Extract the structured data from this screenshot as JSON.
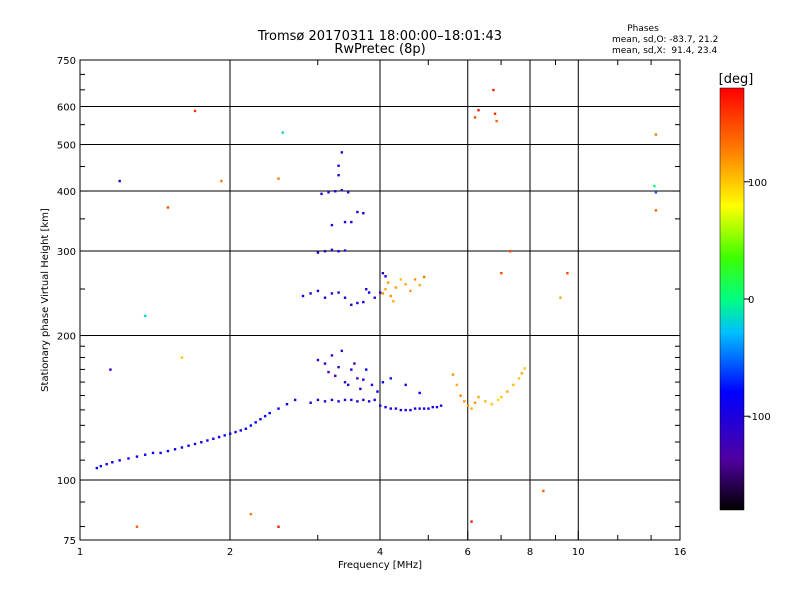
{
  "chart_data": {
    "type": "scatter",
    "title": "Tromsø 20170311 18:00:00–18:01:43",
    "subtitle": "RwPretec (8p)",
    "xlabel": "Frequency [MHz]",
    "ylabel": "Stationary phase Virtual Height [km]",
    "x_scale": "log",
    "y_scale": "log",
    "xlim": [
      1,
      16
    ],
    "ylim": [
      75,
      750
    ],
    "x_ticks": [
      1,
      2,
      4,
      6,
      8,
      10,
      16
    ],
    "x_tick_labels": [
      "1",
      "2",
      "4",
      "6",
      "8",
      "10",
      "16"
    ],
    "y_ticks": [
      75,
      100,
      200,
      300,
      400,
      500,
      600,
      750
    ],
    "y_tick_labels": [
      "75",
      "100",
      "200",
      "300",
      "400",
      "500",
      "600",
      "750"
    ],
    "x_gridlines": [
      2,
      4,
      6,
      8,
      10
    ],
    "y_gridlines": [
      100,
      200,
      300,
      400,
      500,
      600
    ],
    "grid": true,
    "phase_stats": {
      "heading": "Phases",
      "line_o": "mean, sd,O: -83.7, 21.2",
      "line_x": "mean, sd,X:  91.4, 23.4"
    },
    "colorbar": {
      "label": "[deg]",
      "range": [
        -180,
        180
      ],
      "ticks": [
        100,
        0,
        -100
      ],
      "tick_labels": [
        "100",
        "0",
        "-100"
      ]
    },
    "series": [
      {
        "values": [
          [
            1.08,
            106,
            -90
          ],
          [
            1.1,
            107,
            -88
          ],
          [
            1.13,
            108,
            -100
          ],
          [
            1.16,
            109,
            -85
          ],
          [
            1.2,
            110,
            -90
          ],
          [
            1.25,
            111,
            -95
          ],
          [
            1.3,
            112,
            -88
          ],
          [
            1.35,
            113,
            -92
          ],
          [
            1.4,
            114,
            -85
          ],
          [
            1.45,
            114,
            -90
          ],
          [
            1.5,
            115,
            -95
          ],
          [
            1.55,
            116,
            -88
          ],
          [
            1.6,
            117,
            -90
          ],
          [
            1.65,
            118,
            -85
          ],
          [
            1.7,
            119,
            -92
          ],
          [
            1.75,
            120,
            -90
          ],
          [
            1.8,
            121,
            -88
          ],
          [
            1.85,
            122,
            -95
          ],
          [
            1.9,
            123,
            -85
          ],
          [
            1.95,
            124,
            -90
          ],
          [
            2.0,
            125,
            -88
          ],
          [
            2.05,
            126,
            -100
          ],
          [
            2.1,
            127,
            -90
          ],
          [
            2.15,
            128,
            -85
          ],
          [
            2.2,
            130,
            -78
          ],
          [
            2.25,
            132,
            -80
          ],
          [
            2.3,
            134,
            -85
          ],
          [
            2.35,
            136,
            -78
          ],
          [
            2.4,
            138,
            -82
          ],
          [
            2.5,
            141,
            -80
          ],
          [
            2.6,
            144,
            -85
          ],
          [
            2.7,
            147,
            -88
          ]
        ]
      },
      {
        "values": [
          [
            2.9,
            145,
            -100
          ],
          [
            3.0,
            147,
            -105
          ],
          [
            3.1,
            146,
            -110
          ],
          [
            3.2,
            147,
            -100
          ],
          [
            3.3,
            146,
            -108
          ],
          [
            3.4,
            147,
            -112
          ],
          [
            3.5,
            147,
            -100
          ],
          [
            3.6,
            146,
            -105
          ],
          [
            3.7,
            147,
            -110
          ],
          [
            3.8,
            146,
            -100
          ],
          [
            3.9,
            147,
            -95
          ],
          [
            4.0,
            143,
            -95
          ],
          [
            4.1,
            142,
            -100
          ],
          [
            4.2,
            141,
            -92
          ],
          [
            4.3,
            141,
            -98
          ],
          [
            4.4,
            140,
            -100
          ],
          [
            4.5,
            140,
            -95
          ],
          [
            4.6,
            140,
            -92
          ],
          [
            4.7,
            141,
            -98
          ],
          [
            4.8,
            141,
            -95
          ],
          [
            4.9,
            141,
            -100
          ],
          [
            5.0,
            141,
            -95
          ],
          [
            5.1,
            142,
            -92
          ],
          [
            5.2,
            142,
            -98
          ],
          [
            5.3,
            143,
            -100
          ]
        ]
      },
      {
        "values": [
          [
            3.0,
            178,
            -100
          ],
          [
            3.1,
            175,
            -110
          ],
          [
            3.15,
            168,
            -130
          ],
          [
            3.2,
            182,
            -120
          ],
          [
            3.25,
            165,
            -140
          ],
          [
            3.3,
            172,
            -115
          ],
          [
            3.35,
            186,
            -105
          ],
          [
            3.4,
            160,
            -125
          ],
          [
            3.45,
            158,
            -110
          ],
          [
            3.5,
            170,
            -100
          ],
          [
            3.55,
            175,
            -130
          ],
          [
            3.6,
            163,
            -120
          ],
          [
            3.65,
            155,
            -110
          ],
          [
            3.7,
            162,
            -95
          ],
          [
            3.75,
            170,
            -85
          ],
          [
            3.85,
            158,
            -100
          ],
          [
            3.95,
            153,
            -80
          ],
          [
            4.05,
            160,
            -90
          ],
          [
            4.2,
            163,
            -75
          ],
          [
            4.5,
            158,
            -90
          ],
          [
            4.8,
            152,
            -85
          ]
        ]
      },
      {
        "values": [
          [
            3.0,
            298,
            -100
          ],
          [
            3.1,
            300,
            -110
          ],
          [
            3.2,
            302,
            -105
          ],
          [
            3.3,
            300,
            -100
          ],
          [
            3.4,
            301,
            -108
          ],
          [
            3.05,
            395,
            -105
          ],
          [
            3.15,
            398,
            -110
          ],
          [
            3.25,
            400,
            -100
          ],
          [
            3.35,
            402,
            -108
          ],
          [
            3.45,
            398,
            -104
          ],
          [
            3.3,
            452,
            -100
          ],
          [
            3.35,
            482,
            -110
          ],
          [
            3.3,
            432,
            -105
          ],
          [
            3.2,
            340,
            -110
          ],
          [
            3.4,
            345,
            -100
          ],
          [
            3.5,
            345,
            -105
          ],
          [
            3.6,
            362,
            -100
          ],
          [
            3.7,
            360,
            -95
          ]
        ]
      },
      {
        "values": [
          [
            2.8,
            242,
            -90
          ],
          [
            2.9,
            245,
            -100
          ],
          [
            3.0,
            248,
            -105
          ],
          [
            3.1,
            240,
            -110
          ],
          [
            3.2,
            245,
            -100
          ],
          [
            3.3,
            246,
            -105
          ],
          [
            3.4,
            240,
            -100
          ],
          [
            3.5,
            232,
            -105
          ],
          [
            3.6,
            234,
            -100
          ],
          [
            3.7,
            235,
            -95
          ],
          [
            3.75,
            250,
            -100
          ],
          [
            3.8,
            246,
            -90
          ],
          [
            3.9,
            240,
            -100
          ],
          [
            4.0,
            246,
            -105
          ],
          [
            4.05,
            270,
            -110
          ],
          [
            4.1,
            266,
            -100
          ]
        ]
      },
      {
        "values": [
          [
            4.05,
            245,
            120
          ],
          [
            4.1,
            250,
            110
          ],
          [
            4.15,
            258,
            115
          ],
          [
            4.2,
            242,
            120
          ],
          [
            4.25,
            236,
            110
          ],
          [
            4.3,
            252,
            115
          ],
          [
            4.4,
            262,
            105
          ],
          [
            4.5,
            256,
            110
          ],
          [
            4.6,
            248,
            115
          ],
          [
            4.7,
            262,
            120
          ],
          [
            4.8,
            255,
            110
          ],
          [
            4.9,
            265,
            130
          ]
        ]
      },
      {
        "values": [
          [
            5.6,
            166,
            120
          ],
          [
            5.7,
            158,
            110
          ],
          [
            5.8,
            150,
            125
          ],
          [
            5.9,
            146,
            115
          ],
          [
            6.0,
            143,
            120
          ],
          [
            6.1,
            141,
            110
          ],
          [
            6.2,
            145,
            118
          ],
          [
            6.3,
            149,
            112
          ],
          [
            6.5,
            146,
            105
          ],
          [
            6.7,
            144,
            100
          ],
          [
            6.9,
            147,
            95
          ],
          [
            7.0,
            149,
            100
          ],
          [
            7.2,
            153,
            110
          ],
          [
            7.4,
            158,
            105
          ],
          [
            7.6,
            163,
            100
          ],
          [
            7.7,
            167,
            110
          ],
          [
            7.8,
            171,
            100
          ]
        ]
      },
      {
        "values": [
          [
            1.7,
            588,
            160
          ],
          [
            2.5,
            425,
            130
          ],
          [
            2.55,
            530,
            -20
          ],
          [
            1.92,
            420,
            130
          ],
          [
            1.5,
            370,
            150
          ],
          [
            6.2,
            570,
            150
          ],
          [
            6.3,
            590,
            170
          ],
          [
            6.75,
            650,
            170
          ],
          [
            6.8,
            580,
            160
          ],
          [
            6.85,
            560,
            140
          ],
          [
            7.0,
            270,
            150
          ],
          [
            7.3,
            300,
            150
          ],
          [
            9.5,
            270,
            150
          ],
          [
            14.3,
            525,
            130
          ],
          [
            14.3,
            365,
            140
          ],
          [
            14.2,
            410,
            0
          ],
          [
            14.3,
            398,
            -60
          ],
          [
            1.15,
            170,
            -120
          ],
          [
            1.2,
            420,
            -100
          ],
          [
            1.35,
            220,
            -20
          ],
          [
            1.6,
            180,
            100
          ],
          [
            2.2,
            85,
            130
          ],
          [
            2.5,
            80,
            170
          ],
          [
            6.1,
            82,
            170
          ],
          [
            8.5,
            95,
            140
          ],
          [
            9.2,
            240,
            110
          ],
          [
            1.3,
            80,
            140
          ]
        ]
      }
    ]
  }
}
